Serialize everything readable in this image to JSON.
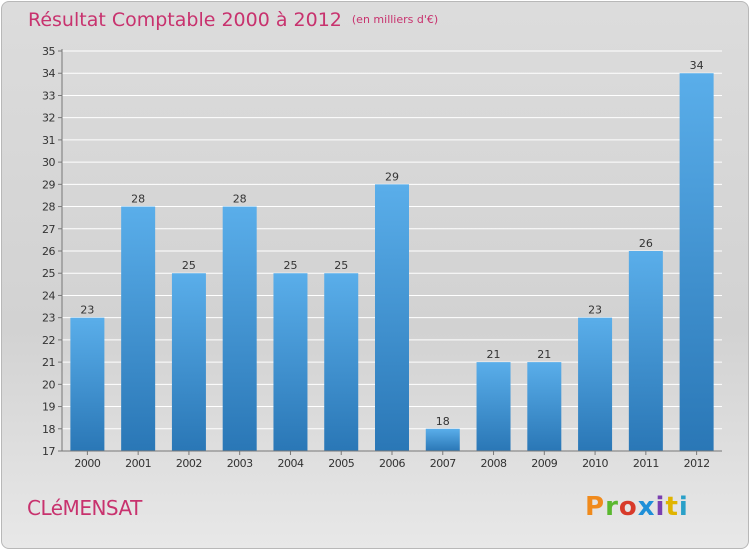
{
  "header": {
    "title": "Résultat Comptable 2000 à 2012",
    "subtitle": "(en milliers d'€)"
  },
  "footer": {
    "town": "CLéMENSAT",
    "logo": "Proxiti"
  },
  "colors": {
    "title": "#c8326e",
    "bar_top": "#5aaeea",
    "bar_bottom": "#2a77b6",
    "logo_letters": [
      "#f08a1c",
      "#5ab82f",
      "#d83a2a",
      "#1e8fd8",
      "#7a3fb0",
      "#e0b400",
      "#2aa0c8"
    ]
  },
  "chart_data": {
    "type": "bar",
    "categories": [
      "2000",
      "2001",
      "2002",
      "2003",
      "2004",
      "2005",
      "2006",
      "2007",
      "2008",
      "2009",
      "2010",
      "2011",
      "2012"
    ],
    "values": [
      23,
      28,
      25,
      28,
      25,
      25,
      29,
      18,
      21,
      21,
      23,
      26,
      34
    ],
    "ylim": [
      17,
      35
    ],
    "yticks": [
      17,
      18,
      19,
      20,
      21,
      22,
      23,
      24,
      25,
      26,
      27,
      28,
      29,
      30,
      31,
      32,
      33,
      34,
      35
    ],
    "grid": true,
    "data_labels": true
  }
}
